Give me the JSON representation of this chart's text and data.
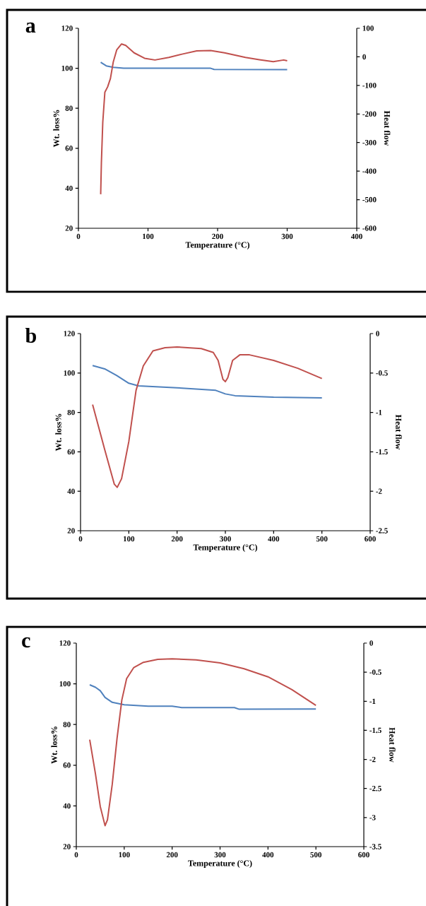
{
  "chart_data": [
    {
      "type": "line",
      "title": "a",
      "xlabel": "Temperature (°C)",
      "ylabel": "Wt. loss%",
      "y2label": "Heat flow",
      "xlim": [
        0,
        400
      ],
      "xticks": [
        0,
        100,
        200,
        300,
        400
      ],
      "ylim": [
        20,
        120
      ],
      "yticks": [
        20,
        40,
        60,
        80,
        100,
        120
      ],
      "y2lim": [
        -600,
        100
      ],
      "y2ticks": [
        -600,
        -500,
        -400,
        -300,
        -200,
        -100,
        0,
        100
      ],
      "series": [
        {
          "color": "#4f81bd",
          "x": [
            32,
            40,
            50,
            65,
            190,
            195,
            300
          ],
          "values": [
            103,
            101.2,
            100.5,
            100,
            100,
            99.4,
            99.3
          ]
        },
        {
          "color": "#c0504d",
          "axis": "y2",
          "x": [
            32,
            33,
            35,
            38,
            42,
            46,
            50,
            55,
            62,
            68,
            80,
            95,
            110,
            130,
            150,
            170,
            190,
            210,
            240,
            260,
            280,
            295,
            300
          ],
          "values": [
            -481,
            -371,
            -229,
            -124,
            -105,
            -76,
            -19,
            24,
            45,
            40,
            14,
            -5,
            -11,
            -2,
            10,
            21,
            22,
            14,
            -2,
            -10,
            -17,
            -11,
            -14
          ]
        }
      ]
    },
    {
      "type": "line",
      "title": "b",
      "xlabel": "Temperature (°C)",
      "ylabel": "Wt. loss%",
      "y2label": "Heat flow",
      "xlim": [
        0,
        600
      ],
      "xticks": [
        0,
        100,
        200,
        300,
        400,
        500,
        600
      ],
      "ylim": [
        20,
        120
      ],
      "yticks": [
        20,
        40,
        60,
        80,
        100,
        120
      ],
      "y2lim": [
        -2.5,
        0
      ],
      "y2ticks": [
        -2.5,
        -2,
        -1.5,
        -1,
        -0.5,
        0
      ],
      "series": [
        {
          "color": "#4f81bd",
          "x": [
            25,
            50,
            75,
            100,
            120,
            200,
            280,
            300,
            320,
            400,
            500
          ],
          "values": [
            103.8,
            102.1,
            98.7,
            94.8,
            93.5,
            92.5,
            91.2,
            89.4,
            88.5,
            87.7,
            87.4
          ]
        },
        {
          "color": "#c0504d",
          "axis": "y2",
          "x": [
            25,
            50,
            70,
            76,
            85,
            100,
            115,
            130,
            150,
            175,
            200,
            250,
            275,
            285,
            295,
            300,
            305,
            315,
            330,
            350,
            400,
            450,
            500
          ],
          "values": [
            -0.9,
            -1.47,
            -1.91,
            -1.95,
            -1.84,
            -1.37,
            -0.72,
            -0.41,
            -0.22,
            -0.18,
            -0.17,
            -0.19,
            -0.24,
            -0.34,
            -0.58,
            -0.61,
            -0.56,
            -0.34,
            -0.27,
            -0.27,
            -0.34,
            -0.44,
            -0.57
          ]
        }
      ]
    },
    {
      "type": "line",
      "title": "c",
      "xlabel": "Temperature (°C)",
      "ylabel": "Wt. loss%",
      "y2label": "Heat flow",
      "xlim": [
        0,
        600
      ],
      "xticks": [
        0,
        100,
        200,
        300,
        400,
        500,
        600
      ],
      "ylim": [
        20,
        120
      ],
      "yticks": [
        20,
        40,
        60,
        80,
        100,
        120
      ],
      "y2lim": [
        -3.5,
        0
      ],
      "y2ticks": [
        -3.5,
        -3,
        -2.5,
        -2,
        -1.5,
        -1,
        -0.5,
        0
      ],
      "series": [
        {
          "color": "#4f81bd",
          "x": [
            28,
            40,
            50,
            60,
            75,
            100,
            150,
            200,
            220,
            330,
            340,
            500
          ],
          "values": [
            99.5,
            98.3,
            96.6,
            93.3,
            90.9,
            89.7,
            89,
            89,
            88.3,
            88.3,
            87.5,
            87.6
          ]
        },
        {
          "color": "#c0504d",
          "axis": "y2",
          "x": [
            28,
            40,
            50,
            60,
            65,
            75,
            85,
            95,
            105,
            120,
            140,
            170,
            200,
            250,
            300,
            350,
            400,
            450,
            500
          ],
          "values": [
            -1.66,
            -2.25,
            -2.81,
            -3.14,
            -3.04,
            -2.43,
            -1.64,
            -0.98,
            -0.61,
            -0.42,
            -0.33,
            -0.28,
            -0.27,
            -0.29,
            -0.34,
            -0.44,
            -0.58,
            -0.8,
            -1.07
          ]
        }
      ]
    }
  ]
}
